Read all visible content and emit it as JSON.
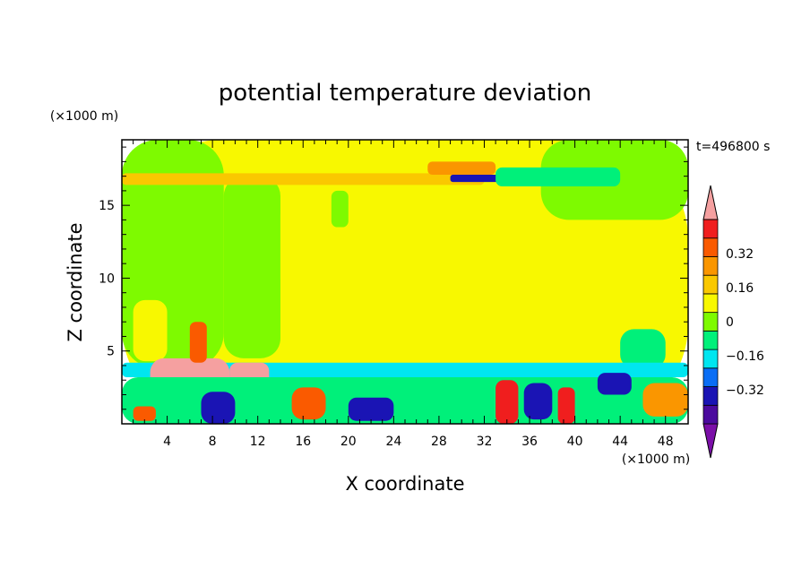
{
  "chart_data": {
    "type": "heatmap",
    "title": "potential temperature deviation",
    "xlabel": "X coordinate",
    "ylabel": "Z coordinate",
    "x_unit": "(×1000 m)",
    "y_unit": "(×1000 m)",
    "time_label": "t=496800 s",
    "xlim": [
      0,
      50
    ],
    "ylim": [
      0,
      19.5
    ],
    "x_ticks": [
      4,
      8,
      12,
      16,
      20,
      24,
      28,
      32,
      36,
      40,
      44,
      48
    ],
    "y_ticks": [
      5,
      10,
      15
    ],
    "x_minor_step": 1,
    "y_minor_step": 1,
    "colorbar": {
      "levels": [
        -0.48,
        -0.4,
        -0.32,
        -0.24,
        -0.16,
        -0.08,
        0,
        0.08,
        0.16,
        0.24,
        0.32,
        0.4,
        0.48
      ],
      "labels": [
        "0.32",
        "0.16",
        "0",
        "−0.16",
        "−0.32"
      ],
      "label_values": [
        0.32,
        0.16,
        0,
        -0.16,
        -0.32
      ],
      "colors": [
        "#7b0fa8",
        "#4b0a9e",
        "#1a14b4",
        "#0a6ef5",
        "#00e6f0",
        "#00f07a",
        "#7efa00",
        "#f8f800",
        "#fac800",
        "#fa9600",
        "#fa5a00",
        "#f01e1e",
        "#f5a0a0"
      ]
    },
    "regions": [
      {
        "level": 0.04,
        "x": [
          0,
          50
        ],
        "y": [
          0,
          19.5
        ]
      },
      {
        "level": -0.04,
        "x": [
          0,
          9
        ],
        "y": [
          3.8,
          19.5
        ]
      },
      {
        "level": 0.04,
        "x": [
          1,
          4
        ],
        "y": [
          4.3,
          8.5
        ]
      },
      {
        "level": -0.04,
        "x": [
          9,
          14
        ],
        "y": [
          4.5,
          17
        ]
      },
      {
        "level": 0.04,
        "x": [
          14,
          37
        ],
        "y": [
          4.8,
          19.5
        ]
      },
      {
        "level": 0.04,
        "x": [
          37,
          41
        ],
        "y": [
          6,
          15
        ]
      },
      {
        "level": -0.04,
        "x": [
          37,
          50
        ],
        "y": [
          14,
          19.5
        ]
      },
      {
        "level": 0.04,
        "x": [
          40,
          45
        ],
        "y": [
          4,
          8.2
        ]
      },
      {
        "level": -0.12,
        "x": [
          44,
          48
        ],
        "y": [
          3.8,
          6.5
        ]
      },
      {
        "level": 0.12,
        "x": [
          0,
          32
        ],
        "y": [
          16.4,
          17.2
        ]
      },
      {
        "level": 0.2,
        "x": [
          27,
          33
        ],
        "y": [
          17.1,
          18
        ]
      },
      {
        "level": -0.36,
        "x": [
          29,
          39
        ],
        "y": [
          16.6,
          17.1
        ]
      },
      {
        "level": -0.12,
        "x": [
          33,
          44
        ],
        "y": [
          16.3,
          17.6
        ]
      },
      {
        "level": -0.04,
        "x": [
          18.5,
          20
        ],
        "y": [
          13.5,
          16
        ]
      },
      {
        "level": -0.2,
        "x": [
          0,
          50
        ],
        "y": [
          3.2,
          4.2
        ]
      },
      {
        "level": 0.48,
        "x": [
          2.5,
          9.5
        ],
        "y": [
          1.8,
          4.5
        ]
      },
      {
        "level": 0.48,
        "x": [
          9.5,
          13
        ],
        "y": [
          2.6,
          4.2
        ]
      },
      {
        "level": 0.28,
        "x": [
          6,
          7.5
        ],
        "y": [
          4.2,
          7
        ]
      },
      {
        "level": -0.12,
        "x": [
          0,
          50
        ],
        "y": [
          0,
          3.2
        ]
      },
      {
        "level": 0.28,
        "x": [
          1,
          3
        ],
        "y": [
          0.2,
          1.2
        ]
      },
      {
        "level": -0.36,
        "x": [
          7,
          10
        ],
        "y": [
          0,
          2.2
        ]
      },
      {
        "level": 0.28,
        "x": [
          15,
          18
        ],
        "y": [
          0.3,
          2.5
        ]
      },
      {
        "level": -0.36,
        "x": [
          20,
          24
        ],
        "y": [
          0.2,
          1.8
        ]
      },
      {
        "level": 0.36,
        "x": [
          33,
          35
        ],
        "y": [
          0,
          3
        ]
      },
      {
        "level": -0.36,
        "x": [
          35.5,
          38
        ],
        "y": [
          0.3,
          2.8
        ]
      },
      {
        "level": 0.36,
        "x": [
          38.5,
          40
        ],
        "y": [
          0,
          2.5
        ]
      },
      {
        "level": -0.36,
        "x": [
          42,
          45
        ],
        "y": [
          2,
          3.5
        ]
      },
      {
        "level": 0.2,
        "x": [
          46,
          50
        ],
        "y": [
          0.5,
          2.8
        ]
      }
    ]
  }
}
